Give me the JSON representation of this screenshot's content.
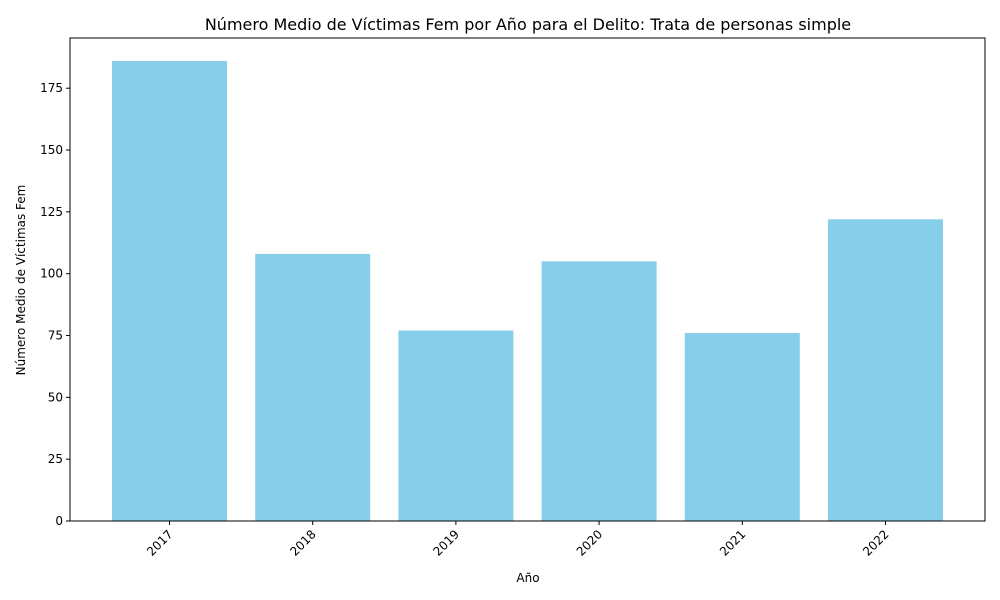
{
  "chart_data": {
    "type": "bar",
    "title": "Número Medio de Víctimas Fem por Año para el Delito: Trata de personas simple",
    "xlabel": "Año",
    "ylabel": "Número Medio de Víctimas Fem",
    "categories": [
      "2017",
      "2018",
      "2019",
      "2020",
      "2021",
      "2022"
    ],
    "values": [
      186,
      108,
      77,
      105,
      76,
      122
    ],
    "ylim": [
      0,
      195.3
    ],
    "yticks": [
      0,
      25,
      50,
      75,
      100,
      125,
      150,
      175
    ],
    "bar_color": "#87CEEB",
    "grid": false,
    "legend": "none"
  }
}
